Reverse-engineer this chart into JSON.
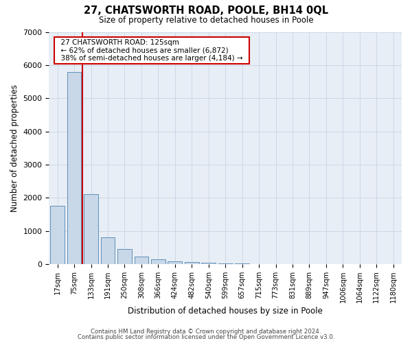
{
  "title": "27, CHATSWORTH ROAD, POOLE, BH14 0QL",
  "subtitle": "Size of property relative to detached houses in Poole",
  "xlabel": "Distribution of detached houses by size in Poole",
  "ylabel": "Number of detached properties",
  "categories": [
    "17sqm",
    "75sqm",
    "133sqm",
    "191sqm",
    "250sqm",
    "308sqm",
    "366sqm",
    "424sqm",
    "482sqm",
    "540sqm",
    "599sqm",
    "657sqm",
    "715sqm",
    "773sqm",
    "831sqm",
    "889sqm",
    "947sqm",
    "1006sqm",
    "1064sqm",
    "1122sqm",
    "1180sqm"
  ],
  "values": [
    1750,
    5800,
    2100,
    800,
    450,
    230,
    140,
    90,
    55,
    35,
    20,
    12,
    8,
    5,
    3,
    2,
    1,
    1,
    1,
    1,
    1
  ],
  "bar_color": "#c8d8e8",
  "bar_edge_color": "#6090b8",
  "vline_color": "#cc0000",
  "vline_x": 1.5,
  "annotation_title": "27 CHATSWORTH ROAD: 125sqm",
  "annotation_line1": "← 62% of detached houses are smaller (6,872)",
  "annotation_line2": "38% of semi-detached houses are larger (4,184) →",
  "annotation_box_color": "#ffffff",
  "annotation_box_edge": "#cc0000",
  "footer1": "Contains HM Land Registry data © Crown copyright and database right 2024.",
  "footer2": "Contains public sector information licensed under the Open Government Licence v3.0.",
  "ylim": [
    0,
    7000
  ],
  "yticks": [
    0,
    1000,
    2000,
    3000,
    4000,
    5000,
    6000,
    7000
  ],
  "grid_color": "#ccd8e8",
  "bg_color": "#e8eef5"
}
